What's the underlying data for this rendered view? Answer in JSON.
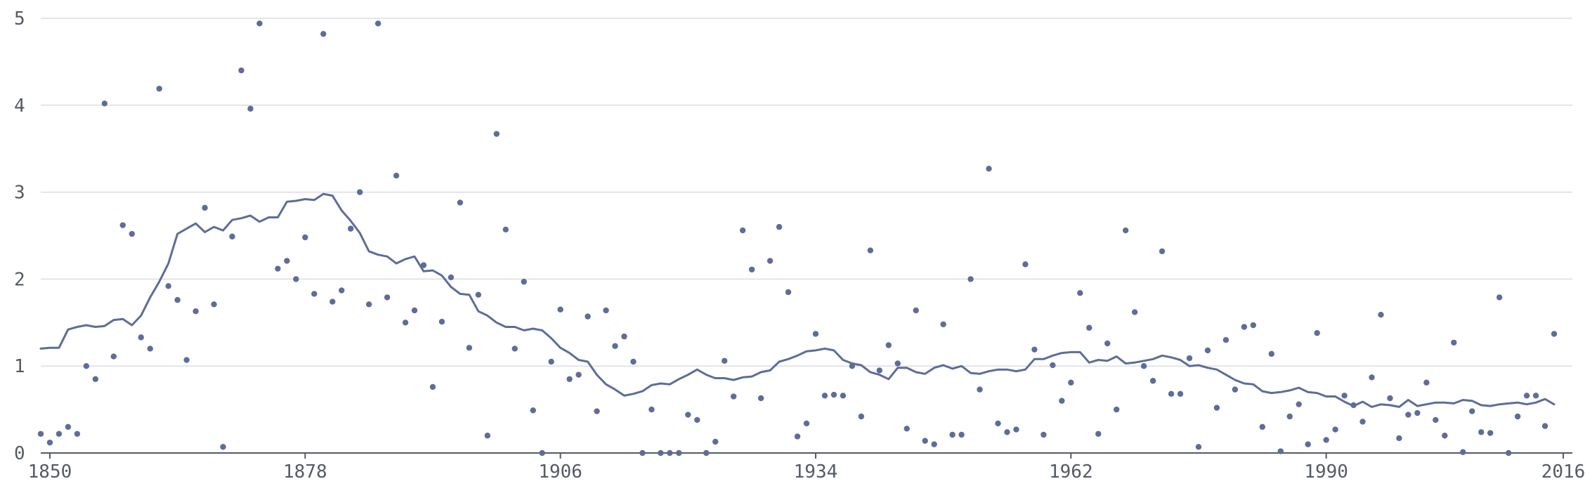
{
  "chart_data": {
    "type": "scatter",
    "title": "",
    "xlabel": "",
    "ylabel": "",
    "xlim": [
      1849,
      2017
    ],
    "ylim": [
      0,
      5
    ],
    "x_ticks": [
      "1850",
      "1878",
      "1906",
      "1934",
      "1962",
      "1990",
      "2016"
    ],
    "y_ticks": [
      "0",
      "1",
      "2",
      "3",
      "4",
      "5"
    ],
    "grid": "horizontal",
    "colors": {
      "series": "#5d6d9a",
      "grid": "#dcdde3",
      "axis": "#555a66",
      "text": "#555a66"
    },
    "points": [
      [
        1849,
        0.22
      ],
      [
        1850,
        0.12
      ],
      [
        1851,
        0.22
      ],
      [
        1852,
        0.3
      ],
      [
        1853,
        0.22
      ],
      [
        1854,
        1.0
      ],
      [
        1855,
        0.85
      ],
      [
        1856,
        4.02
      ],
      [
        1857,
        1.11
      ],
      [
        1858,
        2.62
      ],
      [
        1859,
        2.52
      ],
      [
        1860,
        1.33
      ],
      [
        1861,
        1.2
      ],
      [
        1862,
        4.19
      ],
      [
        1863,
        1.92
      ],
      [
        1864,
        1.76
      ],
      [
        1865,
        1.07
      ],
      [
        1866,
        1.63
      ],
      [
        1867,
        2.82
      ],
      [
        1868,
        1.71
      ],
      [
        1869,
        0.07
      ],
      [
        1870,
        2.49
      ],
      [
        1871,
        4.4
      ],
      [
        1872,
        3.96
      ],
      [
        1873,
        4.94
      ],
      [
        1875,
        2.12
      ],
      [
        1876,
        2.21
      ],
      [
        1877,
        2.0
      ],
      [
        1878,
        2.48
      ],
      [
        1879,
        1.83
      ],
      [
        1880,
        4.82
      ],
      [
        1881,
        1.74
      ],
      [
        1882,
        1.87
      ],
      [
        1883,
        2.58
      ],
      [
        1884,
        3.0
      ],
      [
        1885,
        1.71
      ],
      [
        1886,
        4.94
      ],
      [
        1887,
        1.79
      ],
      [
        1888,
        3.19
      ],
      [
        1889,
        1.5
      ],
      [
        1890,
        1.64
      ],
      [
        1891,
        2.16
      ],
      [
        1892,
        0.76
      ],
      [
        1893,
        1.51
      ],
      [
        1894,
        2.02
      ],
      [
        1895,
        2.88
      ],
      [
        1896,
        1.21
      ],
      [
        1897,
        1.82
      ],
      [
        1898,
        0.2
      ],
      [
        1899,
        3.67
      ],
      [
        1900,
        2.57
      ],
      [
        1901,
        1.2
      ],
      [
        1902,
        1.97
      ],
      [
        1903,
        0.49
      ],
      [
        1904,
        0.0
      ],
      [
        1905,
        1.05
      ],
      [
        1906,
        1.65
      ],
      [
        1907,
        0.85
      ],
      [
        1908,
        0.9
      ],
      [
        1909,
        1.57
      ],
      [
        1910,
        0.48
      ],
      [
        1911,
        1.64
      ],
      [
        1912,
        1.23
      ],
      [
        1913,
        1.34
      ],
      [
        1914,
        1.05
      ],
      [
        1915,
        0.0
      ],
      [
        1916,
        0.5
      ],
      [
        1917,
        0.0
      ],
      [
        1918,
        0.0
      ],
      [
        1919,
        0.0
      ],
      [
        1920,
        0.44
      ],
      [
        1921,
        0.38
      ],
      [
        1922,
        0.0
      ],
      [
        1923,
        0.13
      ],
      [
        1924,
        1.06
      ],
      [
        1925,
        0.65
      ],
      [
        1926,
        2.56
      ],
      [
        1927,
        2.11
      ],
      [
        1928,
        0.63
      ],
      [
        1929,
        2.21
      ],
      [
        1930,
        2.6
      ],
      [
        1931,
        1.85
      ],
      [
        1932,
        0.19
      ],
      [
        1933,
        0.34
      ],
      [
        1934,
        1.37
      ],
      [
        1935,
        0.66
      ],
      [
        1936,
        0.67
      ],
      [
        1937,
        0.66
      ],
      [
        1938,
        1.0
      ],
      [
        1939,
        0.42
      ],
      [
        1940,
        2.33
      ],
      [
        1941,
        0.95
      ],
      [
        1942,
        1.24
      ],
      [
        1943,
        1.03
      ],
      [
        1944,
        0.28
      ],
      [
        1945,
        1.64
      ],
      [
        1946,
        0.14
      ],
      [
        1947,
        0.1
      ],
      [
        1948,
        1.48
      ],
      [
        1949,
        0.21
      ],
      [
        1950,
        0.21
      ],
      [
        1951,
        2.0
      ],
      [
        1952,
        0.73
      ],
      [
        1953,
        3.27
      ],
      [
        1954,
        0.34
      ],
      [
        1955,
        0.24
      ],
      [
        1956,
        0.27
      ],
      [
        1957,
        2.17
      ],
      [
        1958,
        1.19
      ],
      [
        1959,
        0.21
      ],
      [
        1960,
        1.01
      ],
      [
        1961,
        0.6
      ],
      [
        1962,
        0.81
      ],
      [
        1963,
        1.84
      ],
      [
        1964,
        1.44
      ],
      [
        1965,
        0.22
      ],
      [
        1966,
        1.26
      ],
      [
        1967,
        0.5
      ],
      [
        1968,
        2.56
      ],
      [
        1969,
        1.62
      ],
      [
        1970,
        1.0
      ],
      [
        1971,
        0.83
      ],
      [
        1972,
        2.32
      ],
      [
        1973,
        0.68
      ],
      [
        1974,
        0.68
      ],
      [
        1975,
        1.09
      ],
      [
        1976,
        0.07
      ],
      [
        1977,
        1.18
      ],
      [
        1978,
        0.52
      ],
      [
        1979,
        1.3
      ],
      [
        1980,
        0.73
      ],
      [
        1981,
        1.45
      ],
      [
        1982,
        1.47
      ],
      [
        1983,
        0.3
      ],
      [
        1984,
        1.14
      ],
      [
        1985,
        0.02
      ],
      [
        1986,
        0.42
      ],
      [
        1987,
        0.56
      ],
      [
        1988,
        0.1
      ],
      [
        1989,
        1.38
      ],
      [
        1990,
        0.15
      ],
      [
        1991,
        0.27
      ],
      [
        1992,
        0.66
      ],
      [
        1993,
        0.55
      ],
      [
        1994,
        0.36
      ],
      [
        1995,
        0.87
      ],
      [
        1996,
        1.59
      ],
      [
        1997,
        0.63
      ],
      [
        1998,
        0.17
      ],
      [
        1999,
        0.44
      ],
      [
        2000,
        0.46
      ],
      [
        2001,
        0.81
      ],
      [
        2002,
        0.38
      ],
      [
        2003,
        0.2
      ],
      [
        2004,
        1.27
      ],
      [
        2005,
        0.01
      ],
      [
        2006,
        0.48
      ],
      [
        2007,
        0.24
      ],
      [
        2008,
        0.23
      ],
      [
        2009,
        1.79
      ],
      [
        2010,
        0.0
      ],
      [
        2011,
        0.42
      ],
      [
        2012,
        0.66
      ],
      [
        2013,
        0.66
      ],
      [
        2014,
        0.31
      ],
      [
        2015,
        1.37
      ]
    ],
    "line": [
      [
        1849,
        1.2
      ],
      [
        1850,
        1.21
      ],
      [
        1851,
        1.21
      ],
      [
        1852,
        1.42
      ],
      [
        1853,
        1.45
      ],
      [
        1854,
        1.47
      ],
      [
        1855,
        1.45
      ],
      [
        1856,
        1.46
      ],
      [
        1857,
        1.53
      ],
      [
        1858,
        1.54
      ],
      [
        1859,
        1.47
      ],
      [
        1860,
        1.58
      ],
      [
        1861,
        1.79
      ],
      [
        1862,
        1.97
      ],
      [
        1863,
        2.18
      ],
      [
        1864,
        2.52
      ],
      [
        1865,
        2.58
      ],
      [
        1866,
        2.64
      ],
      [
        1867,
        2.54
      ],
      [
        1868,
        2.6
      ],
      [
        1869,
        2.56
      ],
      [
        1870,
        2.68
      ],
      [
        1871,
        2.7
      ],
      [
        1872,
        2.73
      ],
      [
        1873,
        2.66
      ],
      [
        1874,
        2.71
      ],
      [
        1875,
        2.71
      ],
      [
        1876,
        2.89
      ],
      [
        1877,
        2.9
      ],
      [
        1878,
        2.92
      ],
      [
        1879,
        2.91
      ],
      [
        1880,
        2.98
      ],
      [
        1881,
        2.96
      ],
      [
        1882,
        2.79
      ],
      [
        1883,
        2.67
      ],
      [
        1884,
        2.53
      ],
      [
        1885,
        2.32
      ],
      [
        1886,
        2.28
      ],
      [
        1887,
        2.26
      ],
      [
        1888,
        2.18
      ],
      [
        1889,
        2.23
      ],
      [
        1890,
        2.26
      ],
      [
        1891,
        2.09
      ],
      [
        1892,
        2.1
      ],
      [
        1893,
        2.04
      ],
      [
        1894,
        1.91
      ],
      [
        1895,
        1.83
      ],
      [
        1896,
        1.82
      ],
      [
        1897,
        1.63
      ],
      [
        1898,
        1.58
      ],
      [
        1899,
        1.5
      ],
      [
        1900,
        1.45
      ],
      [
        1901,
        1.45
      ],
      [
        1902,
        1.41
      ],
      [
        1903,
        1.43
      ],
      [
        1904,
        1.41
      ],
      [
        1905,
        1.32
      ],
      [
        1906,
        1.21
      ],
      [
        1907,
        1.15
      ],
      [
        1908,
        1.07
      ],
      [
        1909,
        1.05
      ],
      [
        1910,
        0.9
      ],
      [
        1911,
        0.79
      ],
      [
        1912,
        0.73
      ],
      [
        1913,
        0.66
      ],
      [
        1914,
        0.68
      ],
      [
        1915,
        0.71
      ],
      [
        1916,
        0.78
      ],
      [
        1917,
        0.8
      ],
      [
        1918,
        0.79
      ],
      [
        1919,
        0.85
      ],
      [
        1920,
        0.9
      ],
      [
        1921,
        0.96
      ],
      [
        1922,
        0.9
      ],
      [
        1923,
        0.86
      ],
      [
        1924,
        0.86
      ],
      [
        1925,
        0.84
      ],
      [
        1926,
        0.87
      ],
      [
        1927,
        0.88
      ],
      [
        1928,
        0.93
      ],
      [
        1929,
        0.95
      ],
      [
        1930,
        1.05
      ],
      [
        1931,
        1.08
      ],
      [
        1932,
        1.12
      ],
      [
        1933,
        1.17
      ],
      [
        1934,
        1.18
      ],
      [
        1935,
        1.2
      ],
      [
        1936,
        1.18
      ],
      [
        1937,
        1.07
      ],
      [
        1938,
        1.03
      ],
      [
        1939,
        1.01
      ],
      [
        1940,
        0.93
      ],
      [
        1941,
        0.9
      ],
      [
        1942,
        0.85
      ],
      [
        1943,
        0.98
      ],
      [
        1944,
        0.98
      ],
      [
        1945,
        0.93
      ],
      [
        1946,
        0.91
      ],
      [
        1947,
        0.98
      ],
      [
        1948,
        1.01
      ],
      [
        1949,
        0.97
      ],
      [
        1950,
        1.0
      ],
      [
        1951,
        0.92
      ],
      [
        1952,
        0.91
      ],
      [
        1953,
        0.94
      ],
      [
        1954,
        0.96
      ],
      [
        1955,
        0.96
      ],
      [
        1956,
        0.94
      ],
      [
        1957,
        0.96
      ],
      [
        1958,
        1.08
      ],
      [
        1959,
        1.08
      ],
      [
        1960,
        1.12
      ],
      [
        1961,
        1.15
      ],
      [
        1962,
        1.16
      ],
      [
        1963,
        1.16
      ],
      [
        1964,
        1.04
      ],
      [
        1965,
        1.07
      ],
      [
        1966,
        1.06
      ],
      [
        1967,
        1.11
      ],
      [
        1968,
        1.03
      ],
      [
        1969,
        1.04
      ],
      [
        1970,
        1.06
      ],
      [
        1971,
        1.08
      ],
      [
        1972,
        1.12
      ],
      [
        1973,
        1.1
      ],
      [
        1974,
        1.07
      ],
      [
        1975,
        1.0
      ],
      [
        1976,
        1.01
      ],
      [
        1977,
        0.98
      ],
      [
        1978,
        0.96
      ],
      [
        1979,
        0.9
      ],
      [
        1980,
        0.84
      ],
      [
        1981,
        0.8
      ],
      [
        1982,
        0.79
      ],
      [
        1983,
        0.71
      ],
      [
        1984,
        0.69
      ],
      [
        1985,
        0.7
      ],
      [
        1986,
        0.72
      ],
      [
        1987,
        0.75
      ],
      [
        1988,
        0.7
      ],
      [
        1989,
        0.69
      ],
      [
        1990,
        0.65
      ],
      [
        1991,
        0.65
      ],
      [
        1992,
        0.59
      ],
      [
        1993,
        0.54
      ],
      [
        1994,
        0.59
      ],
      [
        1995,
        0.53
      ],
      [
        1996,
        0.56
      ],
      [
        1997,
        0.55
      ],
      [
        1998,
        0.53
      ],
      [
        1999,
        0.61
      ],
      [
        2000,
        0.54
      ],
      [
        2001,
        0.56
      ],
      [
        2002,
        0.58
      ],
      [
        2003,
        0.58
      ],
      [
        2004,
        0.57
      ],
      [
        2005,
        0.61
      ],
      [
        2006,
        0.6
      ],
      [
        2007,
        0.55
      ],
      [
        2008,
        0.54
      ],
      [
        2009,
        0.56
      ],
      [
        2010,
        0.57
      ],
      [
        2011,
        0.58
      ],
      [
        2012,
        0.56
      ],
      [
        2013,
        0.58
      ],
      [
        2014,
        0.62
      ],
      [
        2015,
        0.56
      ]
    ]
  }
}
